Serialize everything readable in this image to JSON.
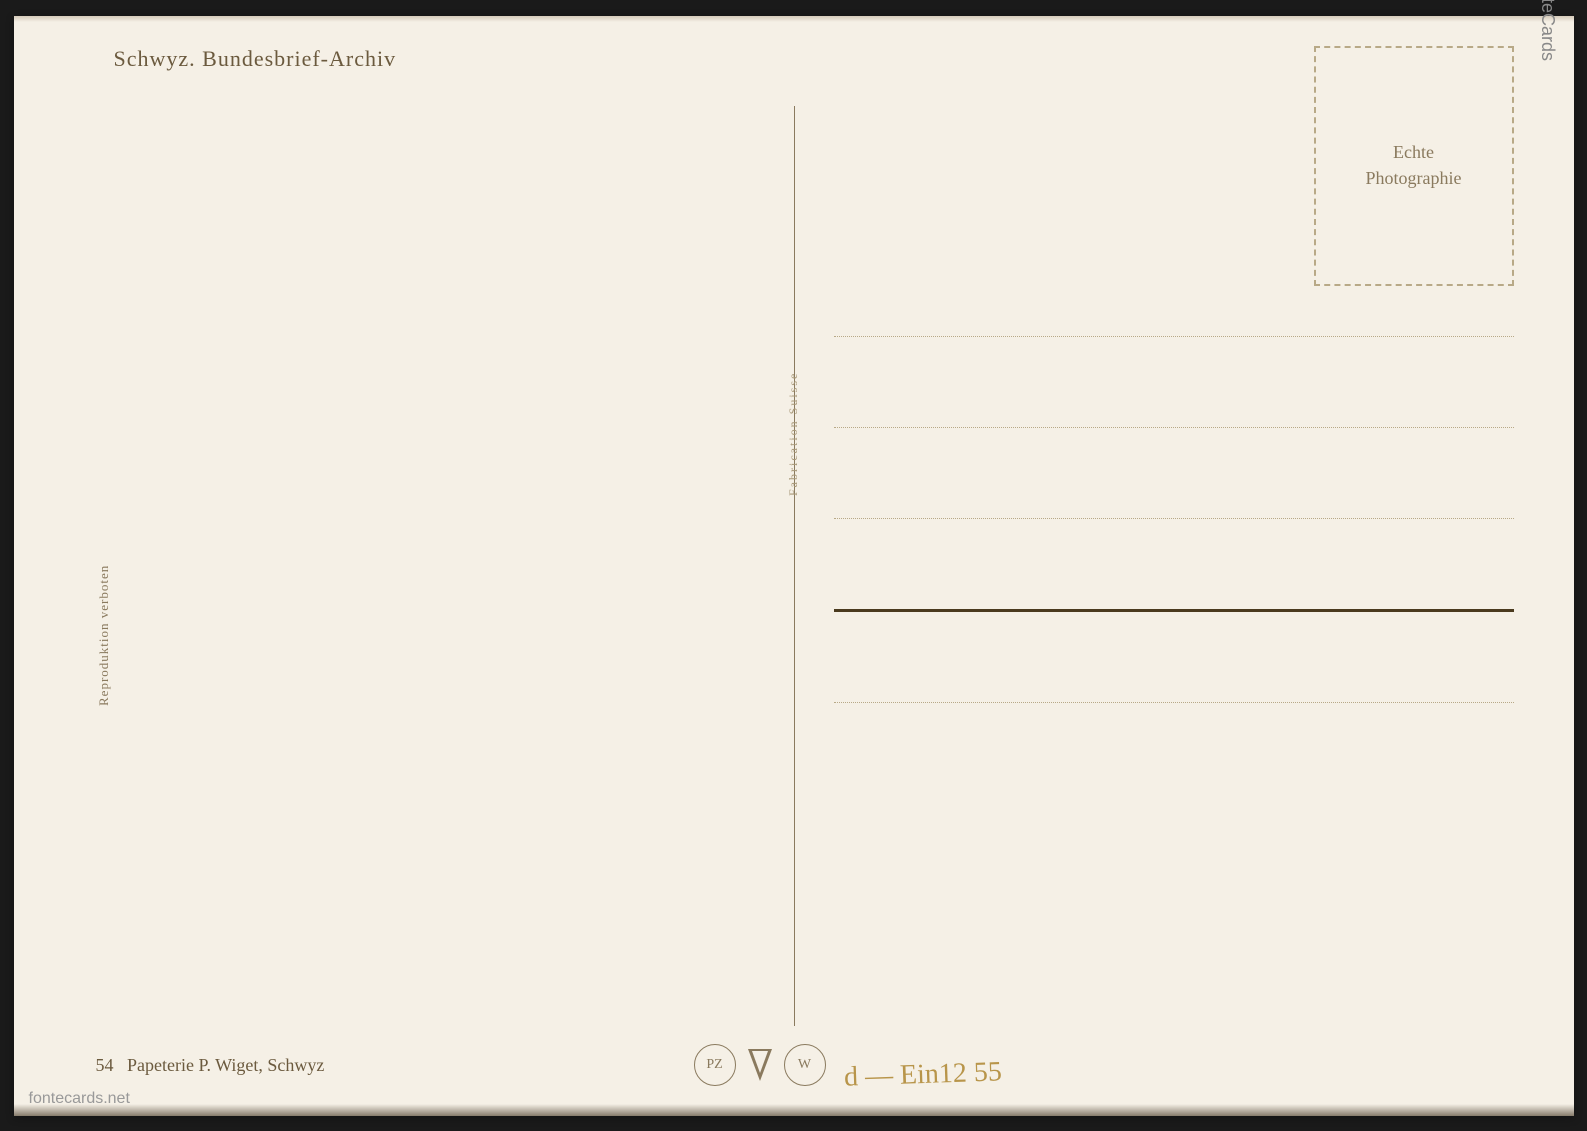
{
  "postcard": {
    "title": "Schwyz. Bundesbrief-Archiv",
    "stamp_box": {
      "line1": "Echte",
      "line2": "Photographie"
    },
    "vertical_left": "Reproduktion verboten",
    "vertical_center": "Fabrication Suisse",
    "publisher_number": "54",
    "publisher_text": "Papeterie P. Wiget, Schwyz",
    "logo_pz": "PZ",
    "logo_w": "W",
    "handwriting": "d — Ein12 55",
    "address_line_count": 5,
    "solid_line_index": 3,
    "colors": {
      "background": "#f5f0e6",
      "text_primary": "#6b5a3e",
      "text_secondary": "#8a7a5e",
      "text_faded": "#a89878",
      "border_dashed": "#b8a987",
      "solid_line": "#4a3a1e",
      "handwriting": "#b8954a"
    }
  },
  "watermarks": {
    "right": "fonteCards",
    "bottom": "fontecards.net"
  }
}
